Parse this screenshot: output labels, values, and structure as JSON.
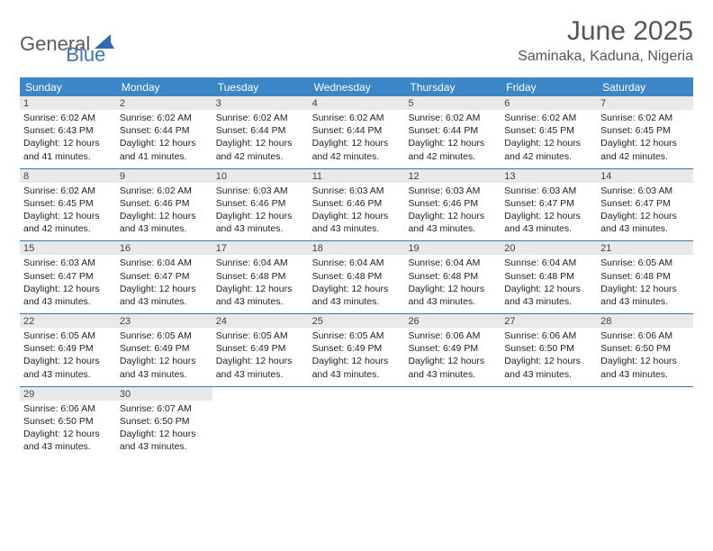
{
  "logo": {
    "part1": "General",
    "part2": "Blue"
  },
  "title": "June 2025",
  "location": "Saminaka, Kaduna, Nigeria",
  "colors": {
    "header_bar": "#3b86c6",
    "week_divider": "#3b74b9",
    "daynum_bg": "#e9e9e9",
    "text": "#222222",
    "title_text": "#555555"
  },
  "dow": [
    "Sunday",
    "Monday",
    "Tuesday",
    "Wednesday",
    "Thursday",
    "Friday",
    "Saturday"
  ],
  "weeks": [
    [
      {
        "n": "1",
        "sr": "6:02 AM",
        "ss": "6:43 PM",
        "dl": "12 hours and 41 minutes."
      },
      {
        "n": "2",
        "sr": "6:02 AM",
        "ss": "6:44 PM",
        "dl": "12 hours and 41 minutes."
      },
      {
        "n": "3",
        "sr": "6:02 AM",
        "ss": "6:44 PM",
        "dl": "12 hours and 42 minutes."
      },
      {
        "n": "4",
        "sr": "6:02 AM",
        "ss": "6:44 PM",
        "dl": "12 hours and 42 minutes."
      },
      {
        "n": "5",
        "sr": "6:02 AM",
        "ss": "6:44 PM",
        "dl": "12 hours and 42 minutes."
      },
      {
        "n": "6",
        "sr": "6:02 AM",
        "ss": "6:45 PM",
        "dl": "12 hours and 42 minutes."
      },
      {
        "n": "7",
        "sr": "6:02 AM",
        "ss": "6:45 PM",
        "dl": "12 hours and 42 minutes."
      }
    ],
    [
      {
        "n": "8",
        "sr": "6:02 AM",
        "ss": "6:45 PM",
        "dl": "12 hours and 42 minutes."
      },
      {
        "n": "9",
        "sr": "6:02 AM",
        "ss": "6:46 PM",
        "dl": "12 hours and 43 minutes."
      },
      {
        "n": "10",
        "sr": "6:03 AM",
        "ss": "6:46 PM",
        "dl": "12 hours and 43 minutes."
      },
      {
        "n": "11",
        "sr": "6:03 AM",
        "ss": "6:46 PM",
        "dl": "12 hours and 43 minutes."
      },
      {
        "n": "12",
        "sr": "6:03 AM",
        "ss": "6:46 PM",
        "dl": "12 hours and 43 minutes."
      },
      {
        "n": "13",
        "sr": "6:03 AM",
        "ss": "6:47 PM",
        "dl": "12 hours and 43 minutes."
      },
      {
        "n": "14",
        "sr": "6:03 AM",
        "ss": "6:47 PM",
        "dl": "12 hours and 43 minutes."
      }
    ],
    [
      {
        "n": "15",
        "sr": "6:03 AM",
        "ss": "6:47 PM",
        "dl": "12 hours and 43 minutes."
      },
      {
        "n": "16",
        "sr": "6:04 AM",
        "ss": "6:47 PM",
        "dl": "12 hours and 43 minutes."
      },
      {
        "n": "17",
        "sr": "6:04 AM",
        "ss": "6:48 PM",
        "dl": "12 hours and 43 minutes."
      },
      {
        "n": "18",
        "sr": "6:04 AM",
        "ss": "6:48 PM",
        "dl": "12 hours and 43 minutes."
      },
      {
        "n": "19",
        "sr": "6:04 AM",
        "ss": "6:48 PM",
        "dl": "12 hours and 43 minutes."
      },
      {
        "n": "20",
        "sr": "6:04 AM",
        "ss": "6:48 PM",
        "dl": "12 hours and 43 minutes."
      },
      {
        "n": "21",
        "sr": "6:05 AM",
        "ss": "6:48 PM",
        "dl": "12 hours and 43 minutes."
      }
    ],
    [
      {
        "n": "22",
        "sr": "6:05 AM",
        "ss": "6:49 PM",
        "dl": "12 hours and 43 minutes."
      },
      {
        "n": "23",
        "sr": "6:05 AM",
        "ss": "6:49 PM",
        "dl": "12 hours and 43 minutes."
      },
      {
        "n": "24",
        "sr": "6:05 AM",
        "ss": "6:49 PM",
        "dl": "12 hours and 43 minutes."
      },
      {
        "n": "25",
        "sr": "6:05 AM",
        "ss": "6:49 PM",
        "dl": "12 hours and 43 minutes."
      },
      {
        "n": "26",
        "sr": "6:06 AM",
        "ss": "6:49 PM",
        "dl": "12 hours and 43 minutes."
      },
      {
        "n": "27",
        "sr": "6:06 AM",
        "ss": "6:50 PM",
        "dl": "12 hours and 43 minutes."
      },
      {
        "n": "28",
        "sr": "6:06 AM",
        "ss": "6:50 PM",
        "dl": "12 hours and 43 minutes."
      }
    ],
    [
      {
        "n": "29",
        "sr": "6:06 AM",
        "ss": "6:50 PM",
        "dl": "12 hours and 43 minutes."
      },
      {
        "n": "30",
        "sr": "6:07 AM",
        "ss": "6:50 PM",
        "dl": "12 hours and 43 minutes."
      },
      null,
      null,
      null,
      null,
      null
    ]
  ],
  "labels": {
    "sunrise": "Sunrise: ",
    "sunset": "Sunset: ",
    "daylight": "Daylight: "
  }
}
